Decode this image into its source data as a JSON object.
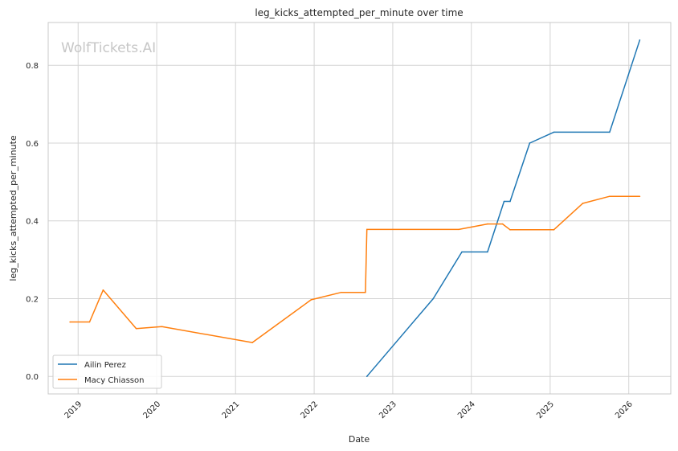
{
  "chart_data": {
    "type": "line",
    "title": "leg_kicks_attempted_per_minute over time",
    "xlabel": "Date",
    "ylabel": "leg_kicks_attempted_per_minute",
    "watermark": "WolfTickets.AI",
    "x_ticks": [
      "2019",
      "2020",
      "2021",
      "2022",
      "2023",
      "2024",
      "2025",
      "2026"
    ],
    "y_ticks": [
      "0.0",
      "0.2",
      "0.4",
      "0.6",
      "0.8"
    ],
    "xlim": [
      "2018-08-15",
      "2026-07-15"
    ],
    "ylim": [
      -0.045,
      0.91
    ],
    "grid": true,
    "legend_position": "bottom-left",
    "series": [
      {
        "name": "Ailin Perez",
        "color": "#1f77b4",
        "points": [
          [
            "2022-09-03",
            0.0
          ],
          [
            "2023-07-08",
            0.2
          ],
          [
            "2023-11-18",
            0.32
          ],
          [
            "2024-03-16",
            0.32
          ],
          [
            "2024-06-01",
            0.45
          ],
          [
            "2024-06-29",
            0.45
          ],
          [
            "2024-09-28",
            0.6
          ],
          [
            "2025-01-18",
            0.628
          ],
          [
            "2025-10-04",
            0.628
          ],
          [
            "2026-02-21",
            0.865
          ]
        ]
      },
      {
        "name": "Macy Chiasson",
        "color": "#ff7f0e",
        "points": [
          [
            "2018-11-24",
            0.14
          ],
          [
            "2019-02-23",
            0.14
          ],
          [
            "2019-04-27",
            0.222
          ],
          [
            "2019-09-28",
            0.123
          ],
          [
            "2020-01-25",
            0.128
          ],
          [
            "2021-03-20",
            0.087
          ],
          [
            "2021-12-18",
            0.197
          ],
          [
            "2022-05-07",
            0.216
          ],
          [
            "2022-08-27",
            0.216
          ],
          [
            "2022-09-03",
            0.378
          ],
          [
            "2023-11-04",
            0.378
          ],
          [
            "2024-03-16",
            0.392
          ],
          [
            "2024-05-25",
            0.392
          ],
          [
            "2024-06-29",
            0.377
          ],
          [
            "2025-01-18",
            0.377
          ],
          [
            "2025-06-01",
            0.445
          ],
          [
            "2025-10-04",
            0.463
          ],
          [
            "2026-02-21",
            0.463
          ]
        ]
      }
    ]
  }
}
